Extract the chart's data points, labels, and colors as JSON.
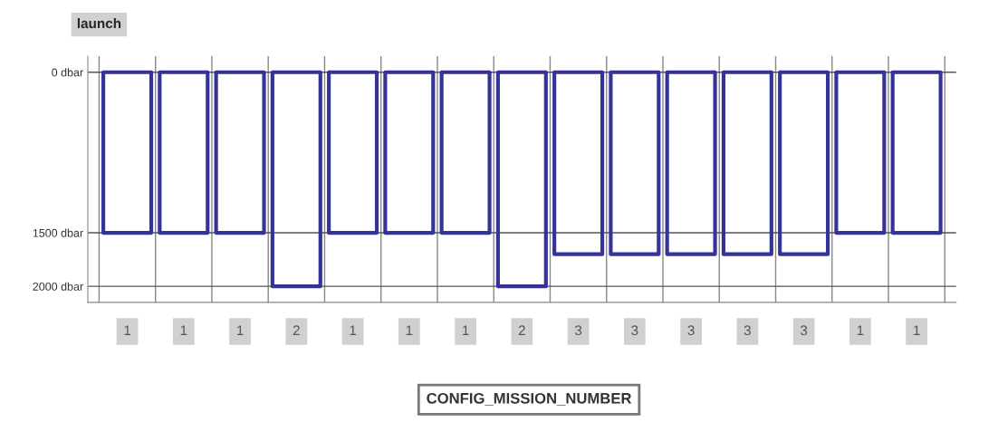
{
  "chart_data": {
    "type": "bar",
    "categories": [
      "1",
      "1",
      "1",
      "2",
      "1",
      "1",
      "1",
      "2",
      "3",
      "3",
      "3",
      "3",
      "3",
      "1",
      "1"
    ],
    "xlabel": "CONFIG_MISSION_NUMBER",
    "annotations": [
      "launch"
    ],
    "series": [
      {
        "color": "#33339a",
        "values": [
          1500,
          1500,
          1500,
          2000,
          1500,
          1500,
          1500,
          2000,
          1700,
          1700,
          1700,
          1700,
          1700,
          1500,
          1500
        ]
      }
    ],
    "ylim": [
      2150,
      -150
    ],
    "yticks": [
      {
        "value": 0,
        "label": "0 dbar"
      },
      {
        "value": 1500,
        "label": "1500 dbar"
      },
      {
        "value": 2000,
        "label": "2000 dbar"
      }
    ],
    "grid": "y"
  }
}
